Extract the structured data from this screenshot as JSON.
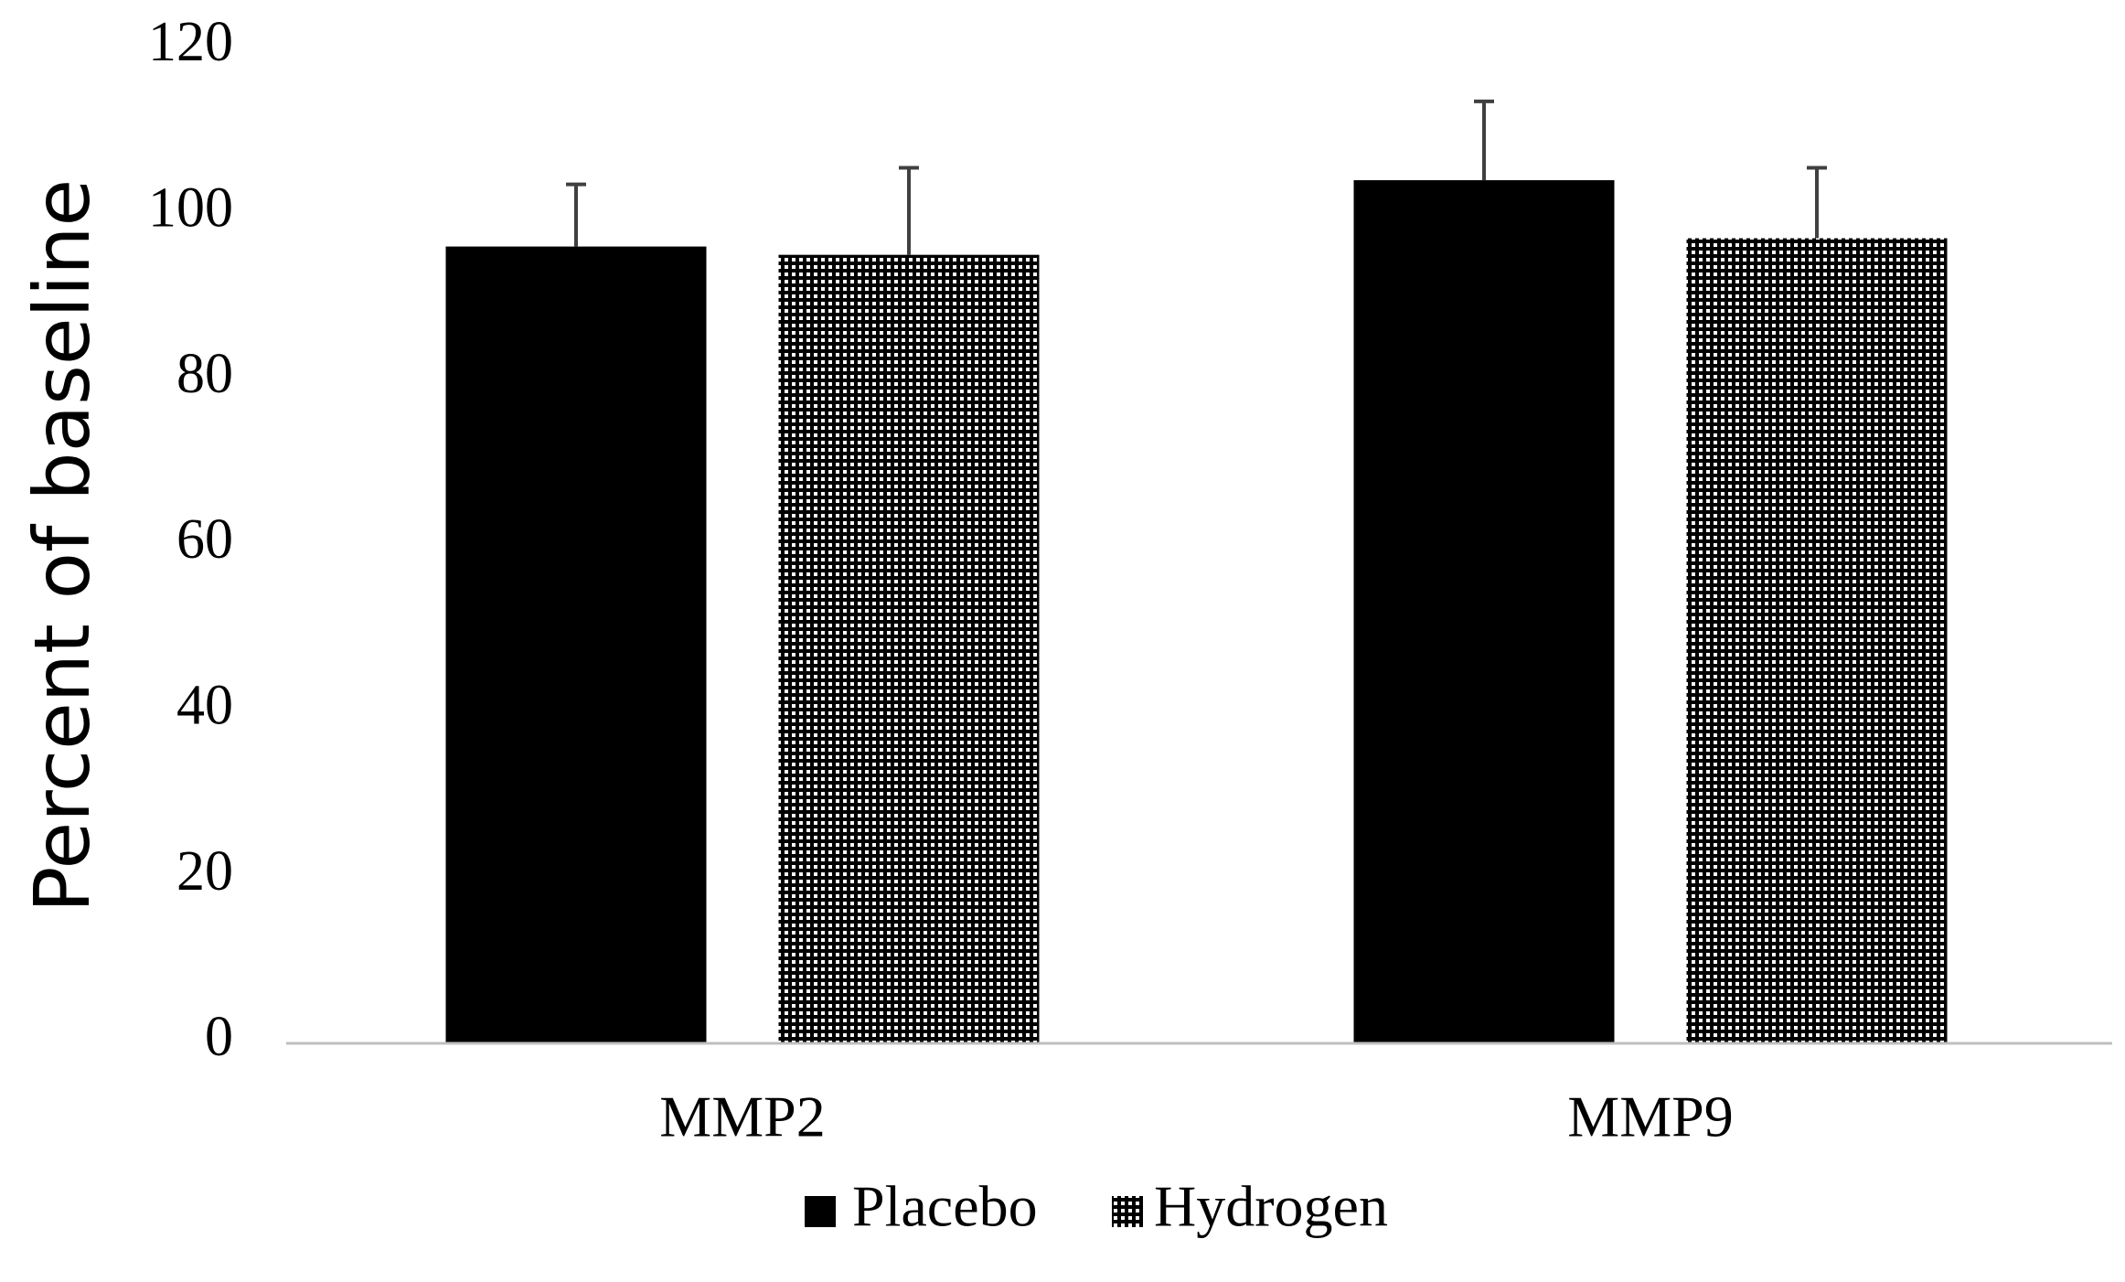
{
  "chart_data": {
    "type": "bar",
    "title": "",
    "xlabel": "",
    "ylabel": "Percent of baseline",
    "categories": [
      "MMP2",
      "MMP9"
    ],
    "series": [
      {
        "name": "Placebo",
        "values": [
          96,
          104
        ],
        "error_upper": [
          7.5,
          9.5
        ],
        "fill": "solid",
        "color": "#000000"
      },
      {
        "name": "Hydrogen",
        "values": [
          95,
          97
        ],
        "error_upper": [
          10.5,
          8.5
        ],
        "fill": "dotted",
        "color": "#000000"
      }
    ],
    "ylim": [
      0,
      120
    ],
    "yticks": [
      0,
      20,
      40,
      60,
      80,
      100,
      120
    ],
    "grid": false,
    "legend": "bottom-center",
    "axis_color": "#bfbfbf"
  }
}
